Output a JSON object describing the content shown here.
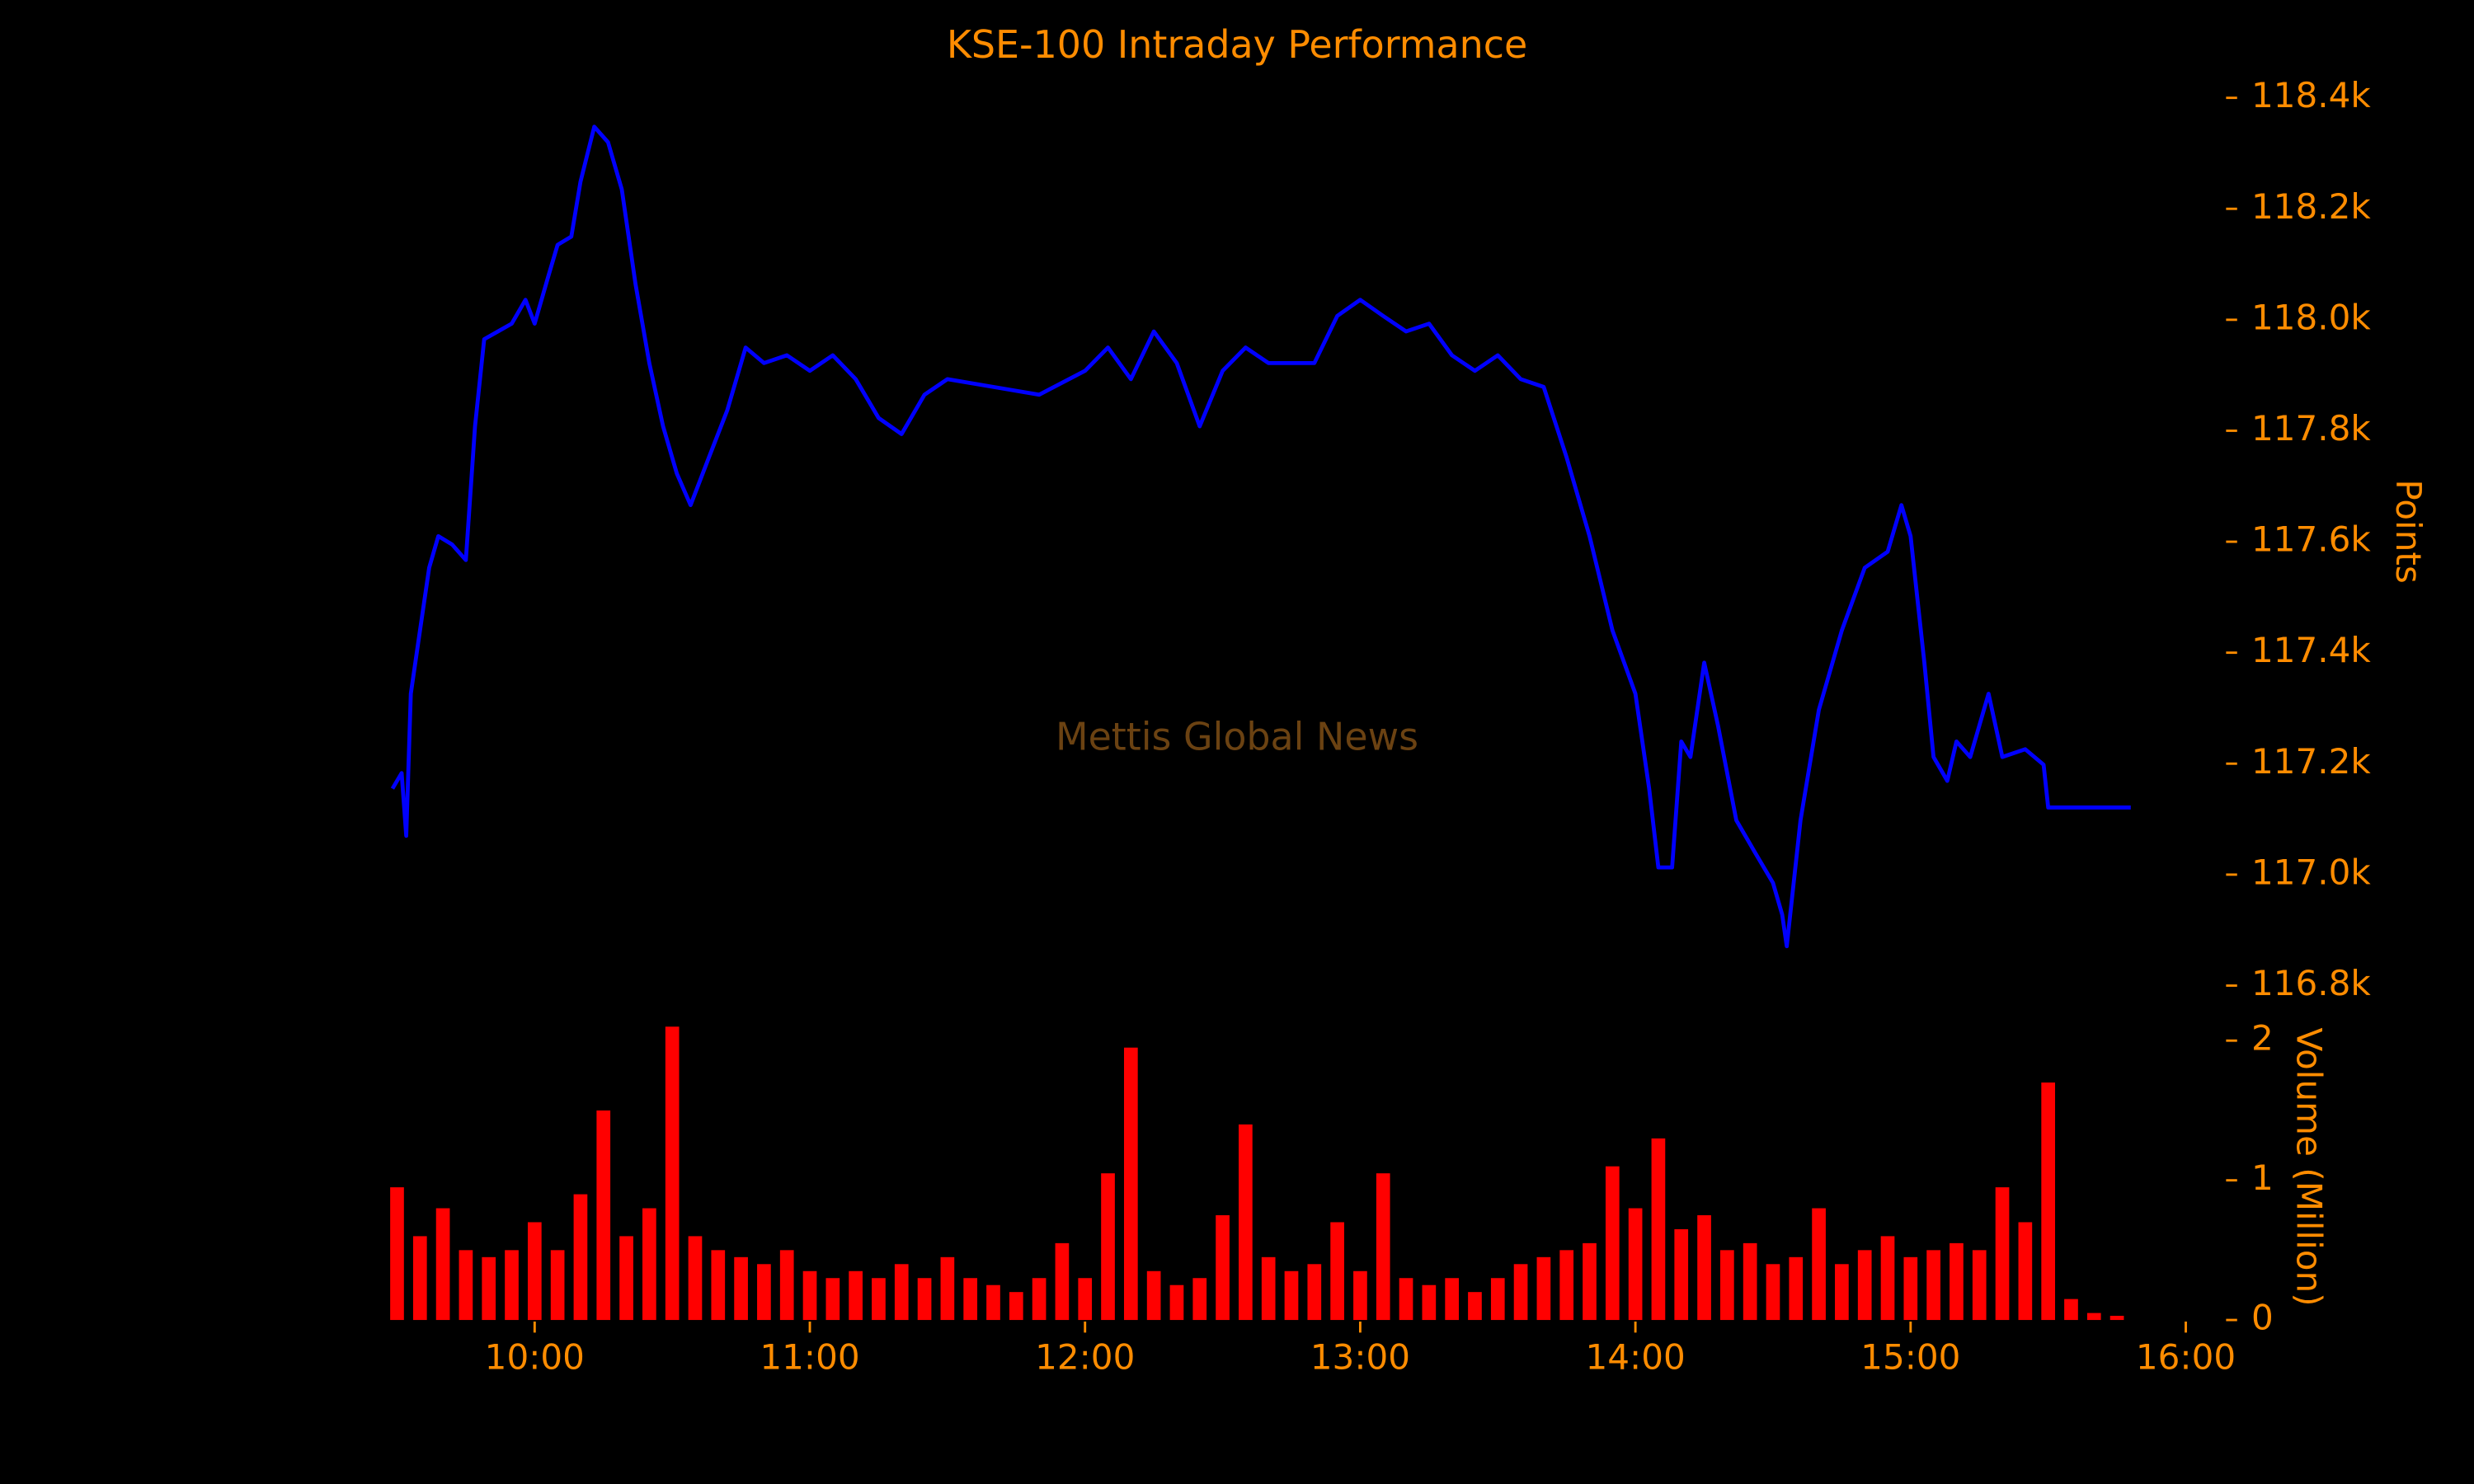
{
  "chart_data": [
    {
      "type": "line",
      "title": "KSE-100 Intraday Performance",
      "y_label": "Points",
      "annotation": "Mettis Global News",
      "color": "#0000ff",
      "x": [
        "09:29",
        "09:31",
        "09:32",
        "09:33",
        "09:35",
        "09:37",
        "09:39",
        "09:42",
        "09:45",
        "09:47",
        "09:49",
        "09:52",
        "09:55",
        "09:58",
        "10:00",
        "10:03",
        "10:05",
        "10:08",
        "10:10",
        "10:13",
        "10:16",
        "10:19",
        "10:22",
        "10:25",
        "10:28",
        "10:31",
        "10:34",
        "10:38",
        "10:42",
        "10:46",
        "10:50",
        "10:55",
        "11:00",
        "11:05",
        "11:10",
        "11:15",
        "11:20",
        "11:25",
        "11:30",
        "11:40",
        "11:50",
        "12:00",
        "12:05",
        "12:10",
        "12:15",
        "12:20",
        "12:25",
        "12:30",
        "12:35",
        "12:40",
        "12:50",
        "12:55",
        "13:00",
        "13:05",
        "13:10",
        "13:15",
        "13:20",
        "13:25",
        "13:30",
        "13:35",
        "13:40",
        "13:45",
        "13:50",
        "13:55",
        "14:00",
        "14:03",
        "14:05",
        "14:08",
        "14:10",
        "14:12",
        "14:15",
        "14:18",
        "14:22",
        "14:26",
        "14:30",
        "14:32",
        "14:33",
        "14:36",
        "14:40",
        "14:45",
        "14:50",
        "14:55",
        "14:58",
        "15:00",
        "15:03",
        "15:05",
        "15:08",
        "15:10",
        "15:13",
        "15:17",
        "15:20",
        "15:25",
        "15:29",
        "15:30",
        "15:48"
      ],
      "values": [
        117155,
        117183,
        117070,
        117326,
        117440,
        117553,
        117610,
        117595,
        117567,
        117808,
        117965,
        117979,
        117993,
        118036,
        117993,
        118079,
        118135,
        118150,
        118249,
        118348,
        118320,
        118235,
        118064,
        117922,
        117808,
        117723,
        117666,
        117752,
        117837,
        117950,
        117922,
        117936,
        117908,
        117936,
        117893,
        117823,
        117794,
        117865,
        117893,
        117879,
        117865,
        117908,
        117950,
        117893,
        117979,
        117922,
        117808,
        117908,
        117950,
        117922,
        117922,
        118007,
        118036,
        118007,
        117979,
        117993,
        117936,
        117908,
        117936,
        117893,
        117879,
        117752,
        117610,
        117440,
        117326,
        117155,
        117013,
        117013,
        117240,
        117212,
        117382,
        117269,
        117098,
        117041,
        116985,
        116928,
        116871,
        117098,
        117297,
        117440,
        117553,
        117582,
        117666,
        117610,
        117382,
        117212,
        117169,
        117240,
        117212,
        117326,
        117212,
        117226,
        117198,
        117121,
        117121
      ],
      "xlim": [
        "09:25",
        "16:05"
      ],
      "ylim": [
        116780,
        118420
      ],
      "yticks": [
        {
          "value": 116800,
          "label": "116.8k"
        },
        {
          "value": 117000,
          "label": "117.0k"
        },
        {
          "value": 117200,
          "label": "117.2k"
        },
        {
          "value": 117400,
          "label": "117.4k"
        },
        {
          "value": 117600,
          "label": "117.6k"
        },
        {
          "value": 117800,
          "label": "117.8k"
        },
        {
          "value": 118000,
          "label": "118.0k"
        },
        {
          "value": 118200,
          "label": "118.2k"
        },
        {
          "value": 118400,
          "label": "118.4k"
        }
      ]
    },
    {
      "type": "bar",
      "y_label": "Volume (Million)",
      "color": "#ff0000",
      "x": [
        "09:30",
        "09:35",
        "09:40",
        "09:45",
        "09:50",
        "09:55",
        "10:00",
        "10:05",
        "10:10",
        "10:15",
        "10:20",
        "10:25",
        "10:30",
        "10:35",
        "10:40",
        "10:45",
        "10:50",
        "10:55",
        "11:00",
        "11:05",
        "11:10",
        "11:15",
        "11:20",
        "11:25",
        "11:30",
        "11:35",
        "11:40",
        "11:45",
        "11:50",
        "11:55",
        "12:00",
        "12:05",
        "12:10",
        "12:15",
        "12:20",
        "12:25",
        "12:30",
        "12:35",
        "12:40",
        "12:45",
        "12:50",
        "12:55",
        "13:00",
        "13:05",
        "13:10",
        "13:15",
        "13:20",
        "13:25",
        "13:30",
        "13:35",
        "13:40",
        "13:45",
        "13:50",
        "13:55",
        "14:00",
        "14:05",
        "14:10",
        "14:15",
        "14:20",
        "14:25",
        "14:30",
        "14:35",
        "14:40",
        "14:45",
        "14:50",
        "14:55",
        "15:00",
        "15:05",
        "15:10",
        "15:15",
        "15:20",
        "15:25",
        "15:30",
        "15:35",
        "15:40",
        "15:45"
      ],
      "values": [
        0.95,
        0.6,
        0.8,
        0.5,
        0.45,
        0.5,
        0.7,
        0.5,
        0.9,
        1.5,
        0.6,
        0.8,
        2.1,
        0.6,
        0.5,
        0.45,
        0.4,
        0.5,
        0.35,
        0.3,
        0.35,
        0.3,
        0.4,
        0.3,
        0.45,
        0.3,
        0.25,
        0.2,
        0.3,
        0.55,
        0.3,
        1.05,
        1.95,
        0.35,
        0.25,
        0.3,
        0.75,
        1.4,
        0.45,
        0.35,
        0.4,
        0.7,
        0.35,
        1.05,
        0.3,
        0.25,
        0.3,
        0.2,
        0.3,
        0.4,
        0.45,
        0.5,
        0.55,
        1.1,
        0.8,
        1.3,
        0.65,
        0.75,
        0.5,
        0.55,
        0.4,
        0.45,
        0.8,
        0.4,
        0.5,
        0.6,
        0.45,
        0.5,
        0.55,
        0.5,
        0.95,
        0.7,
        1.7,
        0.15,
        0.05,
        0.03
      ],
      "xlim": [
        "09:25",
        "16:05"
      ],
      "ylim": [
        0,
        2.1
      ],
      "yticks": [
        0,
        1,
        2
      ],
      "xticks": [
        "10:00",
        "11:00",
        "12:00",
        "13:00",
        "14:00",
        "15:00",
        "16:00"
      ]
    }
  ]
}
